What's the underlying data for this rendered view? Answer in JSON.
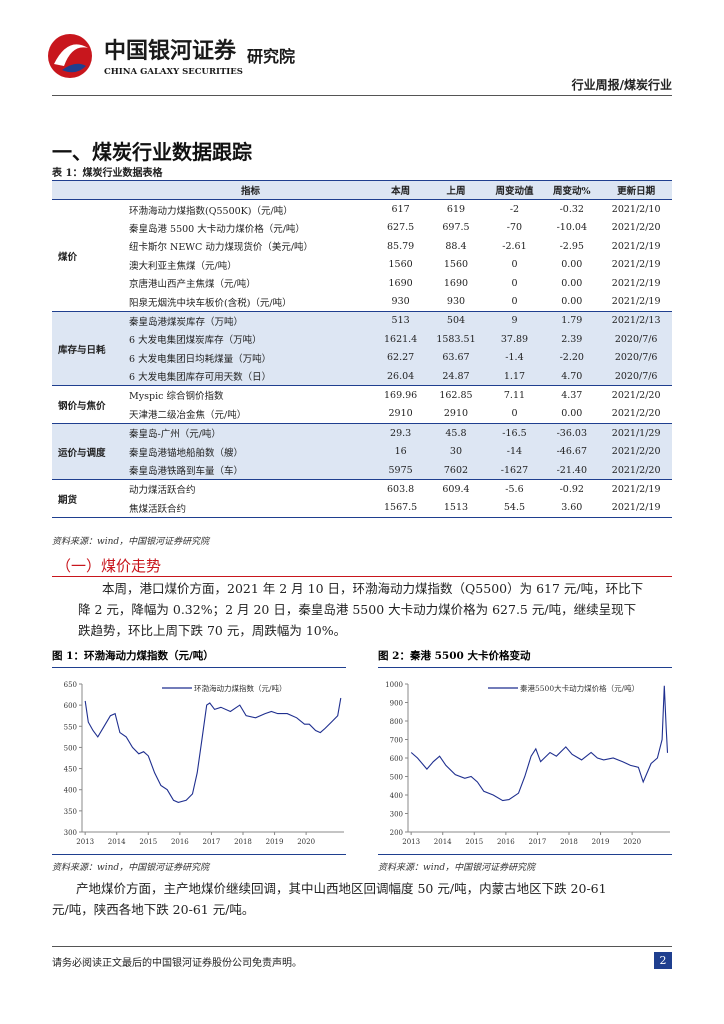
{
  "header": {
    "brand_cn": "中国银河证券",
    "brand_en": "CHINA GALAXY SECURITIES",
    "institute": "研究院",
    "report_type": "行业周报/煤炭行业"
  },
  "section_title": "一、煤炭行业数据跟踪",
  "table": {
    "caption": "表 1：煤炭行业数据表格",
    "header": [
      "指标",
      "本周",
      "上周",
      "周变动值",
      "周变动%",
      "更新日期"
    ],
    "groups": [
      {
        "name": "煤价",
        "rows": [
          [
            "环渤海动力煤指数(Q5500K)（元/吨）",
            "617",
            "619",
            "-2",
            "-0.32",
            "2021/2/10"
          ],
          [
            "秦皇岛港 5500 大卡动力煤价格（元/吨）",
            "627.5",
            "697.5",
            "-70",
            "-10.04",
            "2021/2/20"
          ],
          [
            "纽卡斯尔 NEWC 动力煤现货价（美元/吨）",
            "85.79",
            "88.4",
            "-2.61",
            "-2.95",
            "2021/2/19"
          ],
          [
            "澳大利亚主焦煤（元/吨）",
            "1560",
            "1560",
            "0",
            "0.00",
            "2021/2/19"
          ],
          [
            "京唐港山西产主焦煤（元/吨）",
            "1690",
            "1690",
            "0",
            "0.00",
            "2021/2/19"
          ],
          [
            "阳泉无烟洗中块车板价(含税)（元/吨）",
            "930",
            "930",
            "0",
            "0.00",
            "2021/2/19"
          ]
        ]
      },
      {
        "name": "库存与日耗",
        "rows": [
          [
            "秦皇岛港煤炭库存（万吨）",
            "513",
            "504",
            "9",
            "1.79",
            "2021/2/13"
          ],
          [
            "6 大发电集团煤炭库存（万吨）",
            "1621.4",
            "1583.51",
            "37.89",
            "2.39",
            "2020/7/6"
          ],
          [
            "6 大发电集团日均耗煤量（万吨）",
            "62.27",
            "63.67",
            "-1.4",
            "-2.20",
            "2020/7/6"
          ],
          [
            "6 大发电集团库存可用天数（日）",
            "26.04",
            "24.87",
            "1.17",
            "4.70",
            "2020/7/6"
          ]
        ]
      },
      {
        "name": "钢价与焦价",
        "rows": [
          [
            "Myspic 综合钢价指数",
            "169.96",
            "162.85",
            "7.11",
            "4.37",
            "2021/2/20"
          ],
          [
            "天津港二级冶金焦（元/吨）",
            "2910",
            "2910",
            "0",
            "0.00",
            "2021/2/20"
          ]
        ]
      },
      {
        "name": "运价与调度",
        "rows": [
          [
            "秦皇岛-广州（元/吨）",
            "29.3",
            "45.8",
            "-16.5",
            "-36.03",
            "2021/1/29"
          ],
          [
            "秦皇岛港锚地船舶数（艘）",
            "16",
            "30",
            "-14",
            "-46.67",
            "2021/2/20"
          ],
          [
            "秦皇岛港铁路到车量（车）",
            "5975",
            "7602",
            "-1627",
            "-21.40",
            "2021/2/20"
          ]
        ]
      },
      {
        "name": "期货",
        "rows": [
          [
            "动力煤活跃合约",
            "603.8",
            "609.4",
            "-5.6",
            "-0.92",
            "2021/2/19"
          ],
          [
            "焦煤活跃合约",
            "1567.5",
            "1513",
            "54.5",
            "3.60",
            "2021/2/19"
          ]
        ]
      }
    ],
    "source": "资料来源：wind，中国银河证券研究院"
  },
  "subsection_title": "（一）煤价走势",
  "paragraph_1": "本周，港口煤价方面，2021 年 2 月 10 日，环渤海动力煤指数（Q5500）为 617 元/吨，环比下降 2 元，降幅为 0.32%；2 月 20 日，秦皇岛港 5500 大卡动力煤价格为 627.5 元/吨，继续呈现下跌趋势，环比上周下跌 70 元，周跌幅为 10%。",
  "figure_titles": [
    "图 1：环渤海动力煤指数（元/吨）",
    "图 2：秦港 5500 大卡价格变动"
  ],
  "figure_sources": [
    "资料来源：wind，中国银河证券研究院",
    "资料来源：wind，中国银河证券研究院"
  ],
  "chart_data": [
    {
      "type": "line",
      "xlim": [
        2012.9,
        2021.2
      ],
      "xticks": [
        2013,
        2014,
        2015,
        2016,
        2017,
        2018,
        2019,
        2020
      ],
      "ylim": [
        300,
        650
      ],
      "yticks": [
        300,
        350,
        400,
        450,
        500,
        550,
        600,
        650
      ],
      "x": [
        2013.0,
        2013.1,
        2013.25,
        2013.4,
        2013.6,
        2013.8,
        2013.95,
        2014.1,
        2014.3,
        2014.5,
        2014.7,
        2014.85,
        2015.0,
        2015.2,
        2015.4,
        2015.6,
        2015.8,
        2015.95,
        2016.2,
        2016.4,
        2016.55,
        2016.7,
        2016.85,
        2016.95,
        2017.1,
        2017.3,
        2017.6,
        2017.9,
        2018.1,
        2018.4,
        2018.7,
        2018.9,
        2019.1,
        2019.4,
        2019.7,
        2019.95,
        2020.1,
        2020.3,
        2020.45,
        2020.6,
        2020.8,
        2021.0,
        2021.1
      ],
      "series": [
        {
          "name": "环渤海动力煤指数（元/吨）",
          "color": "#1f2f8f",
          "values": [
            610,
            560,
            540,
            525,
            550,
            575,
            580,
            535,
            525,
            500,
            485,
            490,
            480,
            440,
            410,
            400,
            375,
            370,
            375,
            390,
            440,
            520,
            600,
            605,
            590,
            595,
            585,
            600,
            575,
            570,
            580,
            585,
            580,
            580,
            570,
            555,
            555,
            540,
            535,
            545,
            560,
            575,
            617
          ]
        }
      ]
    },
    {
      "type": "line",
      "xlim": [
        2012.9,
        2021.2
      ],
      "xticks": [
        2013,
        2014,
        2015,
        2016,
        2017,
        2018,
        2019,
        2020
      ],
      "ylim": [
        200,
        1000
      ],
      "yticks": [
        200,
        300,
        400,
        500,
        600,
        700,
        800,
        900,
        1000
      ],
      "x": [
        2013.0,
        2013.2,
        2013.5,
        2013.7,
        2013.9,
        2014.1,
        2014.4,
        2014.7,
        2014.9,
        2015.1,
        2015.3,
        2015.6,
        2015.9,
        2016.1,
        2016.4,
        2016.6,
        2016.8,
        2016.95,
        2017.1,
        2017.4,
        2017.6,
        2017.9,
        2018.1,
        2018.4,
        2018.7,
        2018.9,
        2019.1,
        2019.4,
        2019.7,
        2019.95,
        2020.2,
        2020.35,
        2020.6,
        2020.8,
        2020.95,
        2021.02,
        2021.08,
        2021.12
      ],
      "series": [
        {
          "name": "秦港5500大卡动力煤价格（元/吨）",
          "color": "#1f2f8f",
          "values": [
            630,
            600,
            540,
            580,
            610,
            560,
            510,
            490,
            500,
            470,
            420,
            400,
            370,
            375,
            410,
            500,
            610,
            650,
            580,
            630,
            610,
            660,
            620,
            590,
            630,
            600,
            590,
            600,
            580,
            560,
            550,
            470,
            570,
            600,
            700,
            990,
            760,
            627.5
          ]
        }
      ]
    }
  ],
  "paragraph_2": "产地煤价方面，主产地煤价继续回调，其中山西地区回调幅度 50 元/吨，内蒙古地区下跌 20-61 元/吨，陕西各地下跌 20-61 元/吨。",
  "footer": {
    "disclaimer": "请务必阅读正文最后的中国银河证券股份公司免责声明。",
    "page": "2"
  }
}
